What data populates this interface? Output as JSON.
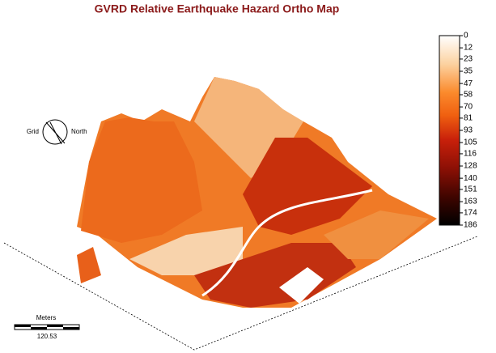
{
  "title": "GVRD Relative Earthquake Hazard Ortho Map",
  "compass": {
    "left": "Grid",
    "right": "North"
  },
  "scale_bar": {
    "unit": "Meters",
    "length": 120.53
  },
  "legend": {
    "range": [
      0,
      186
    ],
    "ticks": [
      0,
      12,
      23,
      35,
      47,
      58,
      70,
      81,
      93,
      105,
      116,
      128,
      140,
      151,
      163,
      174,
      186
    ]
  }
}
